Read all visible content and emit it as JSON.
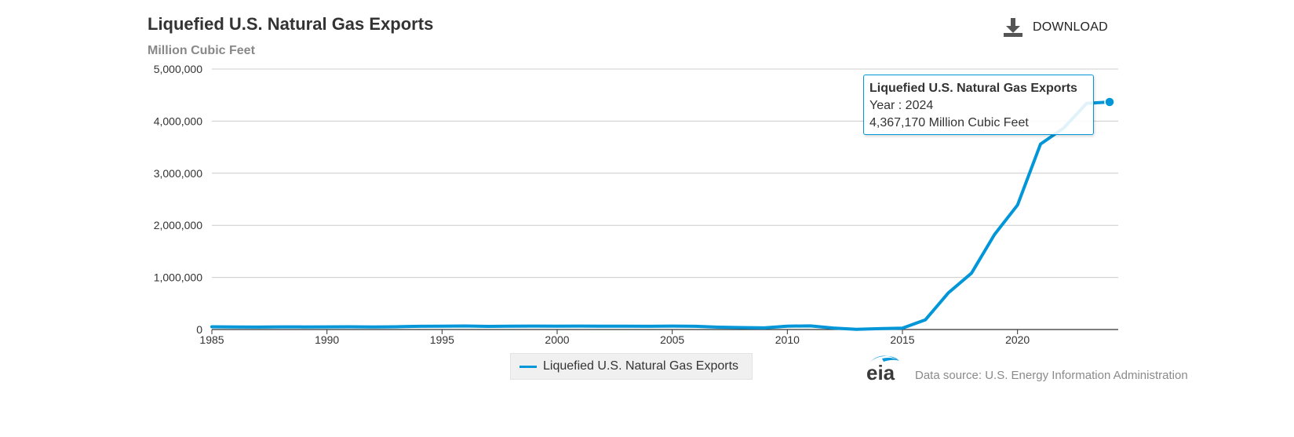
{
  "header": {
    "title": "Liquefied U.S. Natural Gas Exports",
    "subtitle": "Million Cubic Feet",
    "download_label": "DOWNLOAD"
  },
  "legend": {
    "label": "Liquefied U.S. Natural Gas Exports"
  },
  "footer": {
    "logo_text": "eia",
    "source": "Data source: U.S. Energy Information Administration"
  },
  "tooltip": {
    "title": "Liquefied U.S. Natural Gas Exports",
    "year_text": "Year : 2024",
    "value_text": "4,367,170 Million Cubic Feet"
  },
  "colors": {
    "series": "#0096d7",
    "grid": "#cccccc",
    "axis": "#333333"
  },
  "chart_data": {
    "type": "line",
    "title": "Liquefied U.S. Natural Gas Exports",
    "ylabel": "Million Cubic Feet",
    "xlabel": "",
    "xlim": [
      1985,
      2024
    ],
    "ylim": [
      0,
      5000000
    ],
    "x_ticks": [
      1985,
      1990,
      1995,
      2000,
      2005,
      2010,
      2015,
      2020
    ],
    "x_tick_labels": [
      "1985",
      "1990",
      "1995",
      "2000",
      "2005",
      "2010",
      "2015",
      "2020"
    ],
    "y_ticks": [
      0,
      1000000,
      2000000,
      3000000,
      4000000,
      5000000
    ],
    "y_tick_labels": [
      "0",
      "1,000,000",
      "2,000,000",
      "3,000,000",
      "4,000,000",
      "5,000,000"
    ],
    "grid": true,
    "legend_position": "bottom-center",
    "series": [
      {
        "name": "Liquefied U.S. Natural Gas Exports",
        "x": [
          1985,
          1986,
          1987,
          1988,
          1989,
          1990,
          1991,
          1992,
          1993,
          1994,
          1995,
          1996,
          1997,
          1998,
          1999,
          2000,
          2001,
          2002,
          2003,
          2004,
          2005,
          2006,
          2007,
          2008,
          2009,
          2010,
          2011,
          2012,
          2013,
          2014,
          2015,
          2016,
          2017,
          2018,
          2019,
          2020,
          2021,
          2022,
          2023,
          2024
        ],
        "values": [
          52000,
          48000,
          47000,
          51000,
          50000,
          51000,
          52000,
          50000,
          52000,
          62000,
          64000,
          68000,
          60000,
          64000,
          67000,
          64000,
          66000,
          63000,
          65000,
          62000,
          66000,
          62000,
          45000,
          38000,
          32000,
          65000,
          70000,
          28000,
          3000,
          16000,
          27000,
          186000,
          707000,
          1082000,
          1822000,
          2390000,
          3560000,
          3865000,
          4340000,
          4367170
        ]
      }
    ],
    "highlight": {
      "x": 2024,
      "value": 4367170
    }
  }
}
